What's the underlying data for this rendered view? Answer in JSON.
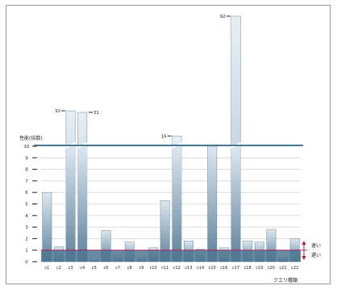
{
  "chart_data": {
    "type": "bar",
    "ylabel": "性能(倍数)",
    "xlabel": "クエリ種類",
    "yticks": [
      0,
      1,
      2,
      3,
      4,
      5,
      6,
      7,
      8,
      9,
      10
    ],
    "axis_break_above": 10,
    "grid": true,
    "categories": [
      "c1",
      "c2",
      "c3",
      "c4",
      "c5",
      "c6",
      "c7",
      "c8",
      "c9",
      "c10",
      "c11",
      "c12",
      "c13",
      "c14",
      "c15",
      "c16",
      "c17",
      "c18",
      "c19",
      "c20",
      "c21",
      "c22"
    ],
    "series": [
      {
        "values": [
          6,
          1.3,
          32,
          31,
          0.15,
          2.7,
          0.6,
          1.7,
          0.4,
          1.2,
          5.3,
          16,
          1.8,
          1.1,
          10,
          1.2,
          92,
          1.8,
          1.7,
          2.8,
          0.4,
          2
        ]
      }
    ],
    "annotated_values": {
      "c3": "32",
      "c4": "31",
      "c12": "16",
      "c17": "92"
    },
    "legend": {
      "position": "right",
      "faster_label": "速い",
      "slower_label": "遅い",
      "baseline": 1
    },
    "colors": {
      "bar_top": "#d7e5ef",
      "bar_bottom": "#5f849f",
      "baseline_band": "#4e7590",
      "break_line": "#4f7790",
      "legend_arrow": "#b0145a"
    }
  }
}
